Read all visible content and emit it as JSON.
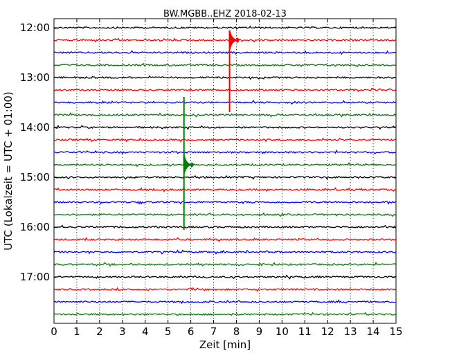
{
  "chart_data": {
    "type": "line",
    "title": "BW.MGBB..EHZ 2018-02-13",
    "xlabel": "Zeit  [min]",
    "ylabel": "UTC (Lokalzeit = UTC + 01:00)",
    "xlim": [
      0,
      15
    ],
    "x_ticks": [
      "0",
      "1",
      "2",
      "3",
      "4",
      "5",
      "6",
      "7",
      "8",
      "9",
      "10",
      "11",
      "12",
      "13",
      "14",
      "15"
    ],
    "y_tick_labels": [
      "12:00",
      "13:00",
      "14:00",
      "15:00",
      "16:00",
      "17:00"
    ],
    "grid": "vertical dotted",
    "trace_interval_min": 15,
    "color_cycle": [
      "#000000",
      "#ff0000",
      "#0000ff",
      "#008000"
    ],
    "traces": [
      {
        "start": "12:00"
      },
      {
        "start": "12:15"
      },
      {
        "start": "12:30"
      },
      {
        "start": "12:45"
      },
      {
        "start": "13:00"
      },
      {
        "start": "13:15"
      },
      {
        "start": "13:30"
      },
      {
        "start": "13:45"
      },
      {
        "start": "14:00"
      },
      {
        "start": "14:15"
      },
      {
        "start": "14:30"
      },
      {
        "start": "14:45"
      },
      {
        "start": "15:00"
      },
      {
        "start": "15:15"
      },
      {
        "start": "15:30"
      },
      {
        "start": "15:45"
      },
      {
        "start": "16:00"
      },
      {
        "start": "16:15"
      },
      {
        "start": "16:30"
      },
      {
        "start": "16:45"
      },
      {
        "start": "17:00"
      },
      {
        "start": "17:15"
      },
      {
        "start": "17:30"
      },
      {
        "start": "17:45"
      }
    ],
    "events": [
      {
        "trace_start": "12:15",
        "time_min": 7.7,
        "color": "#ff0000"
      },
      {
        "trace_start": "14:45",
        "time_min": 5.7,
        "color": "#008000"
      }
    ]
  }
}
